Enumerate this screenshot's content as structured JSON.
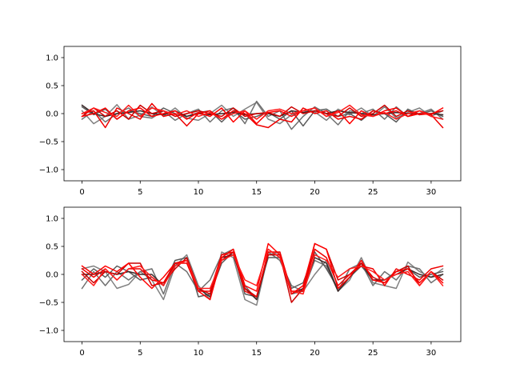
{
  "chart_data": [
    {
      "type": "line",
      "title": "",
      "xlabel": "",
      "ylabel": "",
      "xlim": [
        -1.55,
        32.55
      ],
      "ylim": [
        -1.2,
        1.2
      ],
      "xticks": [
        0,
        5,
        10,
        15,
        20,
        25,
        30
      ],
      "yticks": [
        -1.0,
        -0.5,
        0.0,
        0.5,
        1.0
      ],
      "xtick_labels": [
        "0",
        "5",
        "10",
        "15",
        "20",
        "25",
        "30"
      ],
      "ytick_labels": [
        "−1.0",
        "−0.5",
        "0.0",
        "0.5",
        "1.0"
      ],
      "grid": false,
      "x": [
        0,
        1,
        2,
        3,
        4,
        5,
        6,
        7,
        8,
        9,
        10,
        11,
        12,
        13,
        14,
        15,
        16,
        17,
        18,
        19,
        20,
        21,
        22,
        23,
        24,
        25,
        26,
        27,
        28,
        29,
        30,
        31
      ],
      "series": [
        {
          "color": "#808080",
          "values": [
            0.05,
            -0.18,
            -0.05,
            0.16,
            -0.1,
            -0.03,
            0.12,
            -0.05,
            0.1,
            -0.08,
            -0.12,
            0.0,
            0.15,
            -0.05,
            0.08,
            0.2,
            -0.1,
            -0.18,
            -0.02,
            0.05,
            0.03,
            -0.12,
            0.08,
            -0.02,
            0.1,
            -0.05,
            0.12,
            -0.08,
            0.02,
            0.1,
            -0.05,
            0.05
          ]
        },
        {
          "color": "#707070",
          "values": [
            -0.1,
            0.05,
            -0.15,
            0.0,
            0.1,
            -0.05,
            -0.08,
            0.05,
            -0.12,
            0.0,
            0.08,
            -0.15,
            0.05,
            0.1,
            -0.18,
            0.22,
            -0.05,
            0.05,
            -0.28,
            -0.05,
            0.12,
            0.0,
            -0.2,
            0.05,
            0.0,
            0.08,
            -0.1,
            0.12,
            -0.05,
            0.0,
            0.08,
            -0.1
          ]
        },
        {
          "color": "#5a5a5a",
          "values": [
            0.12,
            -0.02,
            0.08,
            -0.1,
            0.05,
            0.0,
            -0.05,
            0.1,
            0.0,
            -0.05,
            0.02,
            0.05,
            -0.15,
            0.05,
            -0.1,
            -0.05,
            0.02,
            -0.1,
            0.05,
            -0.22,
            0.05,
            0.08,
            -0.05,
            0.0,
            -0.12,
            0.05,
            0.0,
            -0.15,
            0.08,
            -0.02,
            0.05,
            -0.05
          ]
        },
        {
          "color": "#3c2828",
          "values": [
            0.15,
            0.0,
            -0.05,
            0.0,
            0.02,
            0.05,
            0.0,
            -0.02,
            0.05,
            -0.05,
            0.0,
            -0.02,
            0.0,
            0.02,
            -0.02,
            0.0,
            0.0,
            -0.05,
            0.05,
            0.02,
            0.05,
            0.0,
            0.05,
            0.02,
            0.0,
            -0.02,
            0.0,
            0.02,
            0.0,
            0.0,
            0.0,
            -0.02
          ]
        },
        {
          "color": "#cc0000",
          "values": [
            -0.05,
            0.1,
            -0.05,
            0.05,
            -0.1,
            0.15,
            0.0,
            0.05,
            -0.05,
            0.0,
            0.05,
            0.0,
            -0.05,
            0.1,
            -0.05,
            0.0,
            0.02,
            -0.05,
            0.12,
            0.0,
            0.05,
            0.0,
            -0.05,
            0.1,
            -0.05,
            0.0,
            0.15,
            -0.05,
            0.05,
            -0.02,
            0.0,
            0.05
          ]
        },
        {
          "color": "#ff0000",
          "values": [
            -0.05,
            0.0,
            0.1,
            -0.1,
            0.05,
            0.1,
            -0.05,
            0.0,
            0.05,
            -0.1,
            0.02,
            -0.05,
            0.1,
            -0.15,
            0.05,
            -0.18,
            0.02,
            0.05,
            -0.05,
            0.05,
            0.1,
            -0.05,
            0.05,
            -0.18,
            0.05,
            -0.05,
            0.05,
            0.1,
            -0.05,
            0.0,
            -0.02,
            0.1
          ]
        },
        {
          "color": "#ee0000",
          "values": [
            0.0,
            0.05,
            -0.25,
            0.1,
            0.0,
            -0.1,
            0.18,
            -0.05,
            0.0,
            -0.22,
            0.0,
            0.05,
            -0.1,
            0.05,
            0.0,
            -0.2,
            -0.25,
            -0.1,
            -0.15,
            0.1,
            0.0,
            0.05,
            -0.1,
            -0.05,
            -0.1,
            0.05,
            0.0,
            0.05,
            -0.05,
            0.05,
            -0.02,
            -0.25
          ]
        },
        {
          "color": "#ff1a1a",
          "values": [
            0.0,
            0.1,
            0.02,
            -0.05,
            0.15,
            -0.05,
            0.1,
            0.05,
            -0.02,
            0.05,
            -0.05,
            0.02,
            -0.1,
            0.0,
            0.05,
            -0.1,
            0.05,
            0.08,
            0.0,
            0.05,
            0.1,
            -0.05,
            0.02,
            0.15,
            -0.02,
            -0.05,
            0.02,
            -0.1,
            0.0,
            0.05,
            -0.05,
            -0.1
          ]
        }
      ]
    },
    {
      "type": "line",
      "title": "",
      "xlabel": "",
      "ylabel": "",
      "xlim": [
        -1.55,
        32.55
      ],
      "ylim": [
        -1.2,
        1.2
      ],
      "xticks": [
        0,
        5,
        10,
        15,
        20,
        25,
        30
      ],
      "yticks": [
        -1.0,
        -0.5,
        0.0,
        0.5,
        1.0
      ],
      "xtick_labels": [
        "0",
        "5",
        "10",
        "15",
        "20",
        "25",
        "30"
      ],
      "ytick_labels": [
        "−1.0",
        "−0.5",
        "0.0",
        "0.5",
        "1.0"
      ],
      "grid": false,
      "x": [
        0,
        1,
        2,
        3,
        4,
        5,
        6,
        7,
        8,
        9,
        10,
        11,
        12,
        13,
        14,
        15,
        16,
        17,
        18,
        19,
        20,
        21,
        22,
        23,
        24,
        25,
        26,
        27,
        28,
        29,
        30,
        31
      ],
      "series": [
        {
          "color": "#808080",
          "values": [
            0.1,
            0.15,
            0.05,
            -0.25,
            -0.18,
            0.05,
            -0.1,
            -0.45,
            0.15,
            0.35,
            -0.2,
            -0.45,
            0.4,
            0.3,
            -0.45,
            -0.55,
            0.35,
            0.4,
            -0.35,
            -0.3,
            0.0,
            0.25,
            -0.3,
            -0.1,
            0.3,
            -0.15,
            -0.2,
            -0.25,
            0.22,
            0.05,
            -0.05,
            0.1
          ]
        },
        {
          "color": "#707070",
          "values": [
            -0.25,
            0.05,
            -0.2,
            0.05,
            -0.1,
            0.05,
            0.1,
            -0.35,
            0.2,
            0.05,
            -0.3,
            -0.1,
            0.35,
            0.45,
            -0.2,
            -0.45,
            0.4,
            0.25,
            -0.2,
            -0.3,
            0.25,
            0.15,
            -0.3,
            0.1,
            0.2,
            -0.2,
            0.05,
            -0.1,
            0.15,
            0.1,
            -0.15,
            0.0
          ]
        },
        {
          "color": "#5a5a5a",
          "values": [
            -0.1,
            0.1,
            -0.05,
            0.15,
            0.05,
            -0.1,
            -0.05,
            -0.2,
            0.25,
            0.3,
            -0.4,
            -0.35,
            0.2,
            0.4,
            -0.35,
            -0.4,
            0.3,
            0.3,
            -0.25,
            -0.15,
            0.4,
            0.1,
            -0.25,
            -0.05,
            0.15,
            -0.1,
            -0.1,
            0.05,
            0.1,
            -0.05,
            0.0,
            0.05
          ]
        },
        {
          "color": "#3c2828",
          "values": [
            0.0,
            0.0,
            0.05,
            0.0,
            0.05,
            0.0,
            0.0,
            -0.2,
            0.2,
            0.25,
            -0.25,
            -0.4,
            0.3,
            0.35,
            -0.25,
            -0.45,
            0.35,
            0.35,
            -0.35,
            -0.25,
            0.3,
            0.2,
            -0.3,
            -0.05,
            0.2,
            -0.1,
            -0.1,
            0.0,
            0.1,
            0.0,
            -0.05,
            0.0
          ]
        },
        {
          "color": "#cc0000",
          "values": [
            0.05,
            -0.15,
            0.05,
            0.0,
            0.2,
            0.2,
            -0.2,
            -0.15,
            0.1,
            0.3,
            -0.25,
            -0.35,
            0.25,
            0.4,
            -0.25,
            -0.4,
            0.35,
            0.35,
            -0.5,
            -0.25,
            0.55,
            0.45,
            -0.1,
            0.0,
            0.2,
            -0.05,
            -0.15,
            0.05,
            0.15,
            -0.2,
            0.05,
            -0.1
          ]
        },
        {
          "color": "#ff0000",
          "values": [
            0.15,
            0.0,
            0.15,
            0.05,
            0.2,
            -0.05,
            -0.25,
            -0.05,
            0.2,
            0.25,
            -0.3,
            -0.45,
            0.3,
            0.45,
            -0.2,
            -0.3,
            0.55,
            0.35,
            -0.35,
            -0.2,
            0.55,
            0.45,
            -0.25,
            -0.05,
            0.25,
            -0.1,
            -0.15,
            0.05,
            0.1,
            -0.15,
            0.05,
            -0.15
          ]
        },
        {
          "color": "#ee0000",
          "values": [
            0.1,
            -0.05,
            0.1,
            -0.1,
            0.1,
            0.1,
            -0.1,
            -0.15,
            0.2,
            0.2,
            -0.3,
            -0.3,
            0.35,
            0.4,
            -0.3,
            -0.4,
            0.4,
            0.4,
            -0.3,
            -0.3,
            0.45,
            0.3,
            -0.2,
            0.0,
            0.15,
            0.1,
            -0.2,
            0.1,
            0.0,
            -0.1,
            0.1,
            0.15
          ]
        },
        {
          "color": "#ff1a1a",
          "values": [
            0.0,
            -0.2,
            0.1,
            -0.1,
            0.1,
            0.15,
            -0.05,
            -0.2,
            0.15,
            0.25,
            -0.25,
            -0.25,
            0.25,
            0.35,
            -0.1,
            -0.2,
            0.45,
            0.3,
            -0.3,
            -0.35,
            0.35,
            0.25,
            -0.05,
            0.1,
            0.15,
            0.05,
            -0.1,
            0.0,
            0.05,
            -0.2,
            0.05,
            -0.2
          ]
        }
      ]
    }
  ]
}
